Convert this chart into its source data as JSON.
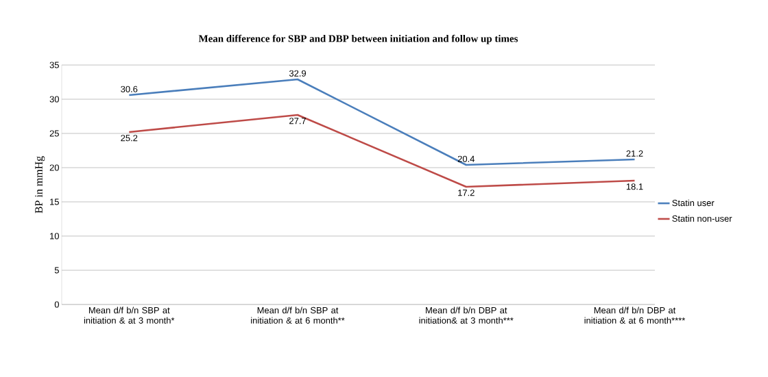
{
  "chart_data": {
    "type": "line",
    "title": "Mean difference for SBP and DBP between initiation and follow up times",
    "ylabel": "BP in mmHg",
    "categories": [
      "Mean d/f b/n SBP at initiation & at 3 month*",
      "Mean d/f b/n SBP at initiation & at 6 month**",
      "Mean d/f b/n DBP at initiation& at 3 month***",
      "Mean d/f b/n DBP at initiation & at 6 month****"
    ],
    "series": [
      {
        "name": "Statin user",
        "color": "#4a7ebb",
        "values": [
          30.6,
          32.9,
          20.4,
          21.2
        ]
      },
      {
        "name": "Statin non-user",
        "color": "#be4b48",
        "values": [
          25.2,
          27.7,
          17.2,
          18.1
        ]
      }
    ],
    "ylim": [
      0,
      35
    ],
    "yticks": [
      0,
      5,
      10,
      15,
      20,
      25,
      30,
      35
    ],
    "grid": "y",
    "legend": "right",
    "data_labels": true,
    "marker": "none",
    "line_style": "solid"
  }
}
